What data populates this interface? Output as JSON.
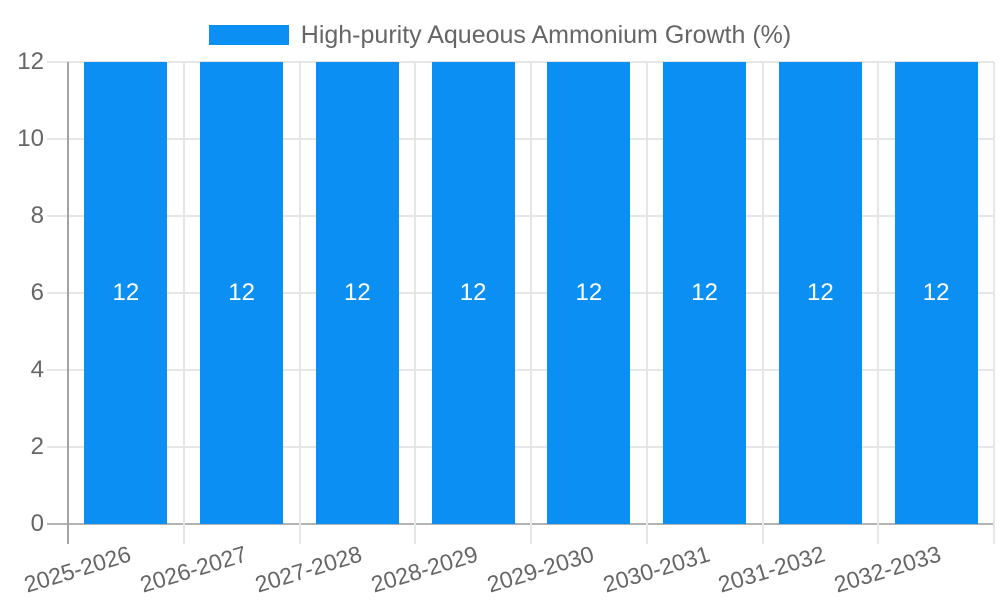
{
  "chart_data": {
    "type": "bar",
    "legend": "High-purity Aqueous Ammonium Growth (%)",
    "legend_position": "top",
    "categories": [
      "2025-2026",
      "2026-2027",
      "2027-2028",
      "2028-2029",
      "2029-2030",
      "2030-2031",
      "2031-2032",
      "2032-2033"
    ],
    "series": [
      {
        "name": "High-purity Aqueous Ammonium Growth (%)",
        "values": [
          12,
          12,
          12,
          12,
          12,
          12,
          12,
          12
        ]
      }
    ],
    "data_labels": [
      "12",
      "12",
      "12",
      "12",
      "12",
      "12",
      "12",
      "12"
    ],
    "ylim": [
      0,
      12
    ],
    "yticks": [
      "12",
      "10",
      "8",
      "6",
      "4",
      "2",
      "0"
    ],
    "grid": true,
    "colors": {
      "bar": "#0b8ff2",
      "grid": "#e6e6e6",
      "axis_line": "#a3a3a3",
      "zero_line": "#b3b3b3",
      "text": "#666666",
      "data_label": "#ffffff",
      "background": "#ffffff"
    }
  }
}
